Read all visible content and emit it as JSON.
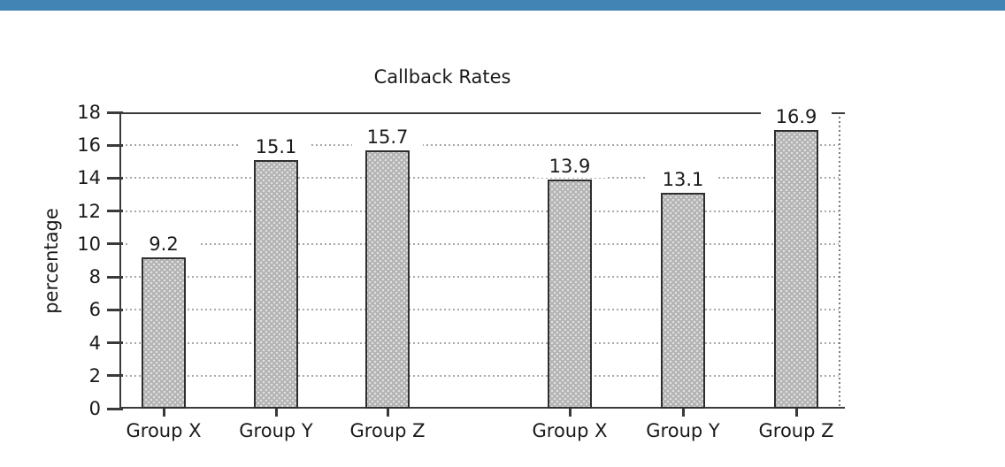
{
  "accent_bar": {
    "color": "#4285b5"
  },
  "chart_data": {
    "type": "bar",
    "title": "Callback Rates",
    "ylabel": "percentage",
    "xlabel": "",
    "ylim": [
      0,
      18
    ],
    "yticks": [
      0,
      2,
      4,
      6,
      8,
      10,
      12,
      14,
      16,
      18
    ],
    "grid": true,
    "legend": false,
    "groups": [
      {
        "categories": [
          "Group X",
          "Group Y",
          "Group Z"
        ],
        "values": [
          9.2,
          15.1,
          15.7
        ]
      },
      {
        "categories": [
          "Group X",
          "Group Y",
          "Group Z"
        ],
        "values": [
          13.9,
          13.1,
          16.9
        ]
      }
    ],
    "bar_fill_color": "#b4b4b4",
    "bar_dot_color": "#e3e3e3",
    "bar_border_color": "#2e2e2e",
    "axis_color": "#3a3a3a",
    "grid_color": "#a9a9a9",
    "text_color": "#1a1a1a"
  }
}
